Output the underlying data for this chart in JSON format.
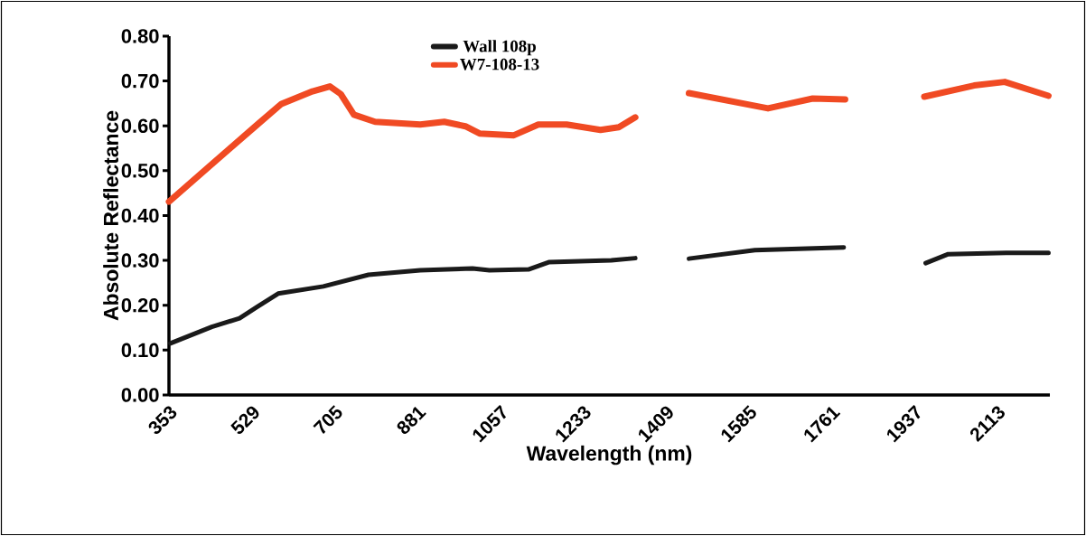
{
  "chart_data": {
    "type": "line",
    "xlabel": "Wavelength (nm)",
    "ylabel": "Absolute Reflectance",
    "series": [
      {
        "name": "Wall 108p",
        "color": "#1a1a1a",
        "x": [
          356,
          444,
          503,
          540,
          585,
          681,
          777,
          887,
          998,
          1034,
          1117,
          1160,
          1293,
          1344,
          1400,
          1458,
          1598,
          1787,
          1870,
          1961,
          2009,
          2132,
          2222
        ],
        "values": [
          0.115,
          0.152,
          0.171,
          0.196,
          0.226,
          0.242,
          0.268,
          0.278,
          0.282,
          0.278,
          0.28,
          0.296,
          0.3,
          0.305,
          null,
          0.304,
          0.323,
          0.329,
          null,
          0.294,
          0.314,
          0.317,
          0.317
        ]
      },
      {
        "name": "W7-108-13",
        "color": "#f04a23",
        "x": [
          353,
          437,
          541,
          592,
          658,
          695,
          718,
          746,
          791,
          887,
          938,
          983,
          1013,
          1086,
          1138,
          1198,
          1270,
          1309,
          1344,
          1400,
          1458,
          1626,
          1721,
          1790,
          1870,
          1958,
          2064,
          2129,
          2222
        ],
        "values": [
          0.431,
          0.508,
          0.603,
          0.649,
          0.677,
          0.688,
          0.671,
          0.625,
          0.609,
          0.603,
          0.609,
          0.599,
          0.583,
          0.579,
          0.603,
          0.603,
          0.591,
          0.597,
          0.619,
          null,
          0.673,
          0.639,
          0.661,
          0.659,
          null,
          0.665,
          0.69,
          0.698,
          0.667
        ]
      }
    ],
    "xlim": [
      353,
      2225
    ],
    "xticks": [
      353,
      529,
      705,
      881,
      1057,
      1233,
      1409,
      1585,
      1761,
      1937,
      2113
    ],
    "ylim": [
      0,
      0.8
    ],
    "yticks": [
      {
        "value": 0,
        "label": "0.00"
      },
      {
        "value": 0.1,
        "label": "0.10"
      },
      {
        "value": 0.2,
        "label": "0.20"
      },
      {
        "value": 0.3,
        "label": "0.30"
      },
      {
        "value": 0.4,
        "label": "0.40"
      },
      {
        "value": 0.5,
        "label": "0.50"
      },
      {
        "value": 0.6,
        "label": "0.60"
      },
      {
        "value": 0.7,
        "label": "0.70"
      },
      {
        "value": 0.8,
        "label": "0.80"
      }
    ],
    "legend": "top",
    "marker": "none",
    "line_style": "solid"
  }
}
